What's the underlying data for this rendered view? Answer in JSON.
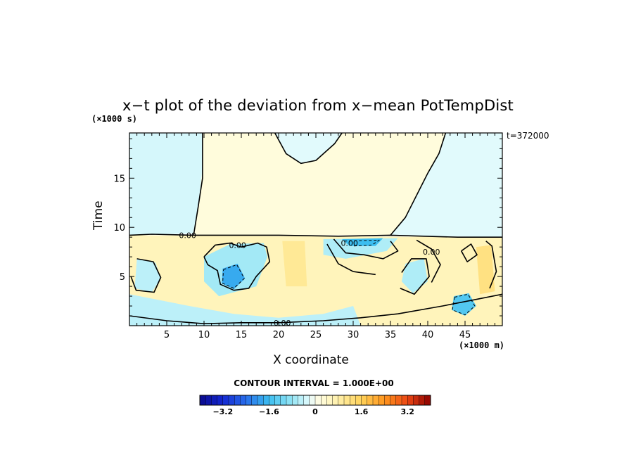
{
  "chart_data": {
    "type": "heatmap",
    "title": "x−t plot of the deviation from x−mean PotTempDist",
    "xlabel": "X coordinate",
    "ylabel": "Time",
    "x_unit": "(×1000 m)",
    "y_unit": "(×1000 s)",
    "time_label": "t=372000",
    "xlim": [
      0,
      50
    ],
    "ylim": [
      0,
      19.6
    ],
    "x_ticks": [
      5,
      10,
      15,
      20,
      25,
      30,
      35,
      40,
      45
    ],
    "y_ticks": [
      5,
      10,
      15
    ],
    "contour_labels": [
      {
        "text": "0.00",
        "x": 7.8,
        "y": 9.2
      },
      {
        "text": "0.00",
        "x": 14.5,
        "y": 8.2
      },
      {
        "text": "0.00",
        "x": 29.5,
        "y": 8.4
      },
      {
        "text": "0.00",
        "x": 20.5,
        "y": 0.3
      },
      {
        "text": "0.00",
        "x": 40.5,
        "y": 7.5
      }
    ],
    "contour_interval_text": "CONTOUR INTERVAL = 1.000E+00",
    "colorbar": {
      "vmin": -4.0,
      "vmax": 4.0,
      "step": 0.2,
      "tick_values": [
        -3.2,
        -1.6,
        0,
        1.6,
        3.2
      ],
      "tick_labels": [
        "−3.2",
        "−1.6",
        "0",
        "1.6",
        "3.2"
      ]
    },
    "regions": [
      {
        "name": "upper-cool",
        "value": -0.3,
        "points": [
          [
            0,
            19.6
          ],
          [
            9.8,
            19.6
          ],
          [
            9.8,
            14
          ],
          [
            9.0,
            11
          ],
          [
            8.5,
            9.4
          ],
          [
            0,
            9.2
          ]
        ]
      },
      {
        "name": "upper-warm",
        "value": 0.2,
        "points": [
          [
            9.8,
            19.6
          ],
          [
            19.5,
            19.6
          ],
          [
            21,
            17.5
          ],
          [
            23,
            16.5
          ],
          [
            25,
            16.8
          ],
          [
            27.5,
            18.5
          ],
          [
            28.5,
            19.6
          ],
          [
            42.4,
            19.6
          ],
          [
            41.5,
            17.5
          ],
          [
            40,
            15.5
          ],
          [
            37,
            11
          ],
          [
            35,
            9.2
          ],
          [
            8.5,
            9.2
          ],
          [
            9.2,
            12
          ],
          [
            9.8,
            16
          ]
        ]
      },
      {
        "name": "top-cool-lobe",
        "value": -0.2,
        "points": [
          [
            19.5,
            19.6
          ],
          [
            28.5,
            19.6
          ],
          [
            27.5,
            18.5
          ],
          [
            25,
            16.8
          ],
          [
            23,
            16.5
          ],
          [
            21,
            17.5
          ]
        ]
      },
      {
        "name": "right-cool",
        "value": -0.2,
        "points": [
          [
            42.4,
            19.6
          ],
          [
            50,
            19.6
          ],
          [
            50,
            9.0
          ],
          [
            35,
            9.2
          ],
          [
            37,
            11
          ],
          [
            40,
            15.5
          ],
          [
            41.5,
            17.5
          ]
        ]
      },
      {
        "name": "lower-warm",
        "value": 0.6,
        "points": [
          [
            0,
            9.2
          ],
          [
            50,
            9.0
          ],
          [
            50,
            0
          ],
          [
            0,
            0
          ]
        ]
      },
      {
        "name": "cool-pocket-a",
        "value": -0.7,
        "points": [
          [
            10,
            7
          ],
          [
            13.5,
            8.3
          ],
          [
            18,
            8.4
          ],
          [
            18.5,
            7
          ],
          [
            17,
            4
          ],
          [
            12,
            3
          ],
          [
            10,
            4.5
          ]
        ]
      },
      {
        "name": "cool-core-a",
        "value": -1.8,
        "points": [
          [
            12.5,
            5.8
          ],
          [
            14.5,
            6.3
          ],
          [
            15.5,
            4.8
          ],
          [
            14,
            3.7
          ],
          [
            12.4,
            4.3
          ]
        ]
      },
      {
        "name": "cool-pocket-b",
        "value": -0.5,
        "points": [
          [
            1,
            6.8
          ],
          [
            3.5,
            6.4
          ],
          [
            4.2,
            4.8
          ],
          [
            3,
            3.4
          ],
          [
            0.7,
            3.8
          ]
        ]
      },
      {
        "name": "cool-band-c",
        "value": -0.6,
        "points": [
          [
            26,
            8.8
          ],
          [
            36,
            8.9
          ],
          [
            34.5,
            7.6
          ],
          [
            29,
            6.8
          ],
          [
            26,
            7.2
          ]
        ]
      },
      {
        "name": "cool-core-c",
        "value": -1.6,
        "points": [
          [
            28.5,
            8.8
          ],
          [
            34,
            8.9
          ],
          [
            33,
            8.1
          ],
          [
            29.5,
            8.1
          ]
        ]
      },
      {
        "name": "cool-blob-d",
        "value": -1.4,
        "points": [
          [
            43.5,
            3.0
          ],
          [
            45.5,
            3.3
          ],
          [
            46.5,
            2.0
          ],
          [
            45,
            1.0
          ],
          [
            43.2,
            1.6
          ]
        ]
      },
      {
        "name": "cool-blob-e",
        "value": -0.6,
        "points": [
          [
            37,
            6.3
          ],
          [
            39.5,
            6.8
          ],
          [
            40,
            4.5
          ],
          [
            38,
            3.3
          ],
          [
            36.5,
            4.5
          ]
        ]
      },
      {
        "name": "cool-band-f",
        "value": -0.5,
        "points": [
          [
            0,
            3.2
          ],
          [
            8,
            2.0
          ],
          [
            14,
            1.2
          ],
          [
            20,
            0.8
          ],
          [
            26,
            1.2
          ],
          [
            30,
            2.0
          ],
          [
            31,
            0
          ],
          [
            0,
            0
          ]
        ]
      },
      {
        "name": "warm-strip-g",
        "value": 1.2,
        "points": [
          [
            46.5,
            8.0
          ],
          [
            48.5,
            8.2
          ],
          [
            49,
            3.5
          ],
          [
            47,
            3.2
          ]
        ]
      },
      {
        "name": "warm-strip-h",
        "value": 1.0,
        "points": [
          [
            20.5,
            8.6
          ],
          [
            23.5,
            8.6
          ],
          [
            23.8,
            4
          ],
          [
            21,
            4
          ]
        ]
      }
    ],
    "contours": [
      {
        "style": "solid",
        "points": [
          [
            0,
            9.2
          ],
          [
            3,
            9.3
          ],
          [
            8.5,
            9.2
          ],
          [
            20,
            9.2
          ],
          [
            28,
            9.1
          ],
          [
            35,
            9.2
          ],
          [
            44,
            9.0
          ],
          [
            50,
            9.0
          ]
        ]
      },
      {
        "style": "solid",
        "points": [
          [
            9.8,
            19.6
          ],
          [
            9.8,
            15
          ],
          [
            9.2,
            12
          ],
          [
            8.6,
            9.2
          ]
        ]
      },
      {
        "style": "solid",
        "points": [
          [
            19.5,
            19.6
          ],
          [
            21,
            17.5
          ],
          [
            23,
            16.5
          ],
          [
            25,
            16.8
          ],
          [
            27.5,
            18.5
          ],
          [
            28.5,
            19.6
          ]
        ]
      },
      {
        "style": "solid",
        "points": [
          [
            42.4,
            19.6
          ],
          [
            41.5,
            17.5
          ],
          [
            40,
            15.5
          ],
          [
            37,
            11
          ],
          [
            35,
            9.2
          ]
        ]
      },
      {
        "style": "solid",
        "points": [
          [
            10,
            7
          ],
          [
            11.5,
            8.2
          ],
          [
            13.5,
            8.4
          ],
          [
            15,
            8.0
          ],
          [
            17.2,
            8.4
          ],
          [
            18.4,
            8.0
          ],
          [
            18.8,
            6.5
          ],
          [
            17,
            5
          ],
          [
            16,
            3.8
          ],
          [
            14,
            3.6
          ],
          [
            12.2,
            4.2
          ],
          [
            11.8,
            5.6
          ],
          [
            10.5,
            6.2
          ],
          [
            10,
            7
          ]
        ]
      },
      {
        "style": "solid",
        "points": [
          [
            1,
            6.8
          ],
          [
            3.2,
            6.5
          ],
          [
            4.2,
            4.9
          ],
          [
            3.3,
            3.4
          ],
          [
            0.9,
            3.6
          ],
          [
            0.2,
            5
          ]
        ]
      },
      {
        "style": "solid",
        "points": [
          [
            27.4,
            8.8
          ],
          [
            29,
            7.4
          ],
          [
            31.5,
            7.2
          ],
          [
            34,
            6.8
          ],
          [
            36,
            7.6
          ],
          [
            35,
            8.6
          ]
        ]
      },
      {
        "style": "solid",
        "points": [
          [
            26.5,
            8.3
          ],
          [
            28,
            6.3
          ],
          [
            30,
            5.5
          ],
          [
            33,
            5.2
          ]
        ]
      },
      {
        "style": "solid",
        "points": [
          [
            36.5,
            5.4
          ],
          [
            37.8,
            6.8
          ],
          [
            39.8,
            6.8
          ],
          [
            40.2,
            5.0
          ],
          [
            38.2,
            3.2
          ],
          [
            36.3,
            3.8
          ]
        ]
      },
      {
        "style": "solid",
        "points": [
          [
            38.5,
            8.7
          ],
          [
            40.5,
            7.8
          ],
          [
            41.7,
            6.2
          ],
          [
            40.5,
            4.4
          ]
        ]
      },
      {
        "style": "solid",
        "points": [
          [
            0,
            1.0
          ],
          [
            5,
            0.5
          ],
          [
            10,
            0.2
          ],
          [
            15,
            0.3
          ],
          [
            20,
            0.3
          ],
          [
            26,
            0.5
          ],
          [
            31,
            0.8
          ],
          [
            36,
            1.2
          ],
          [
            42,
            2.0
          ],
          [
            46,
            2.6
          ],
          [
            50,
            3.2
          ]
        ]
      },
      {
        "style": "solid",
        "points": [
          [
            44.5,
            7.6
          ],
          [
            45.8,
            8.3
          ],
          [
            46.6,
            7.2
          ],
          [
            45.3,
            6.5
          ],
          [
            44.5,
            7.6
          ]
        ]
      },
      {
        "style": "solid",
        "points": [
          [
            47.8,
            8.6
          ],
          [
            48.6,
            8.1
          ],
          [
            49.2,
            5.5
          ],
          [
            48.3,
            3.8
          ]
        ]
      },
      {
        "style": "dashed",
        "points": [
          [
            12.6,
            5.7
          ],
          [
            14.4,
            6.2
          ],
          [
            15.4,
            4.8
          ],
          [
            14,
            3.8
          ],
          [
            12.5,
            4.3
          ],
          [
            12.6,
            5.7
          ]
        ]
      },
      {
        "style": "dashed",
        "points": [
          [
            43.6,
            2.9
          ],
          [
            45.4,
            3.2
          ],
          [
            46.3,
            2.0
          ],
          [
            45,
            1.1
          ],
          [
            43.3,
            1.6
          ],
          [
            43.6,
            2.9
          ]
        ]
      },
      {
        "style": "dashed",
        "points": [
          [
            28.8,
            8.6
          ],
          [
            33.5,
            8.7
          ],
          [
            32.5,
            8.2
          ],
          [
            30,
            8.1
          ]
        ]
      }
    ]
  }
}
